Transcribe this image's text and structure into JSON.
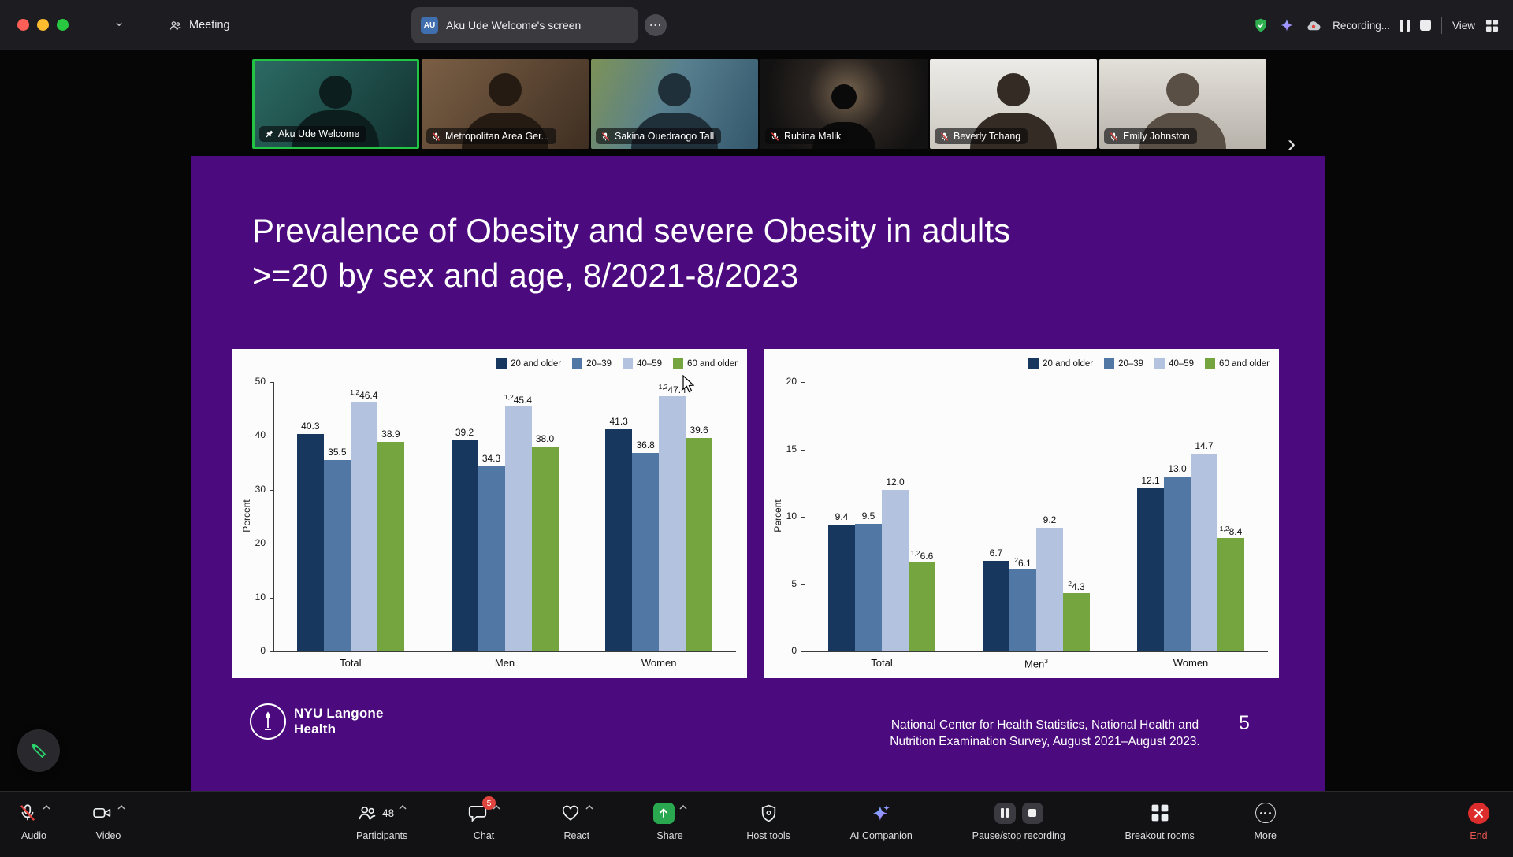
{
  "titlebar": {
    "meeting_tab_label": "Meeting",
    "active_tab_label": "Aku Ude Welcome's screen",
    "active_tab_badge": "AU",
    "recording_label": "Recording...",
    "view_label": "View"
  },
  "icons": {
    "chevron_down": "⌄",
    "ellipsis": "⋯",
    "chevron_right": "›"
  },
  "participants": [
    {
      "name": "Aku Ude Welcome",
      "pinned": true,
      "active_speaker": true
    },
    {
      "name": "Metropolitan Area Ger...",
      "muted": true
    },
    {
      "name": "Sakina Ouedraogo Tall",
      "muted": true
    },
    {
      "name": "Rubina Malik",
      "muted": true
    },
    {
      "name": "Beverly Tchang",
      "muted": true
    },
    {
      "name": "Emily Johnston",
      "muted": true
    }
  ],
  "slide": {
    "title_line1": "Prevalence of Obesity and severe Obesity in adults",
    "title_line2": ">=20 by sex and age, 8/2021-8/2023",
    "logo_line1": "NYU Langone",
    "logo_line2": "Health",
    "citation_line1": "National Center for Health Statistics, National Health and",
    "citation_line2": "Nutrition Examination Survey, August 2021–August 2023.",
    "page_number": "5",
    "background_color": "#4b0a7d"
  },
  "chart_data": [
    {
      "type": "bar",
      "ylabel": "Percent",
      "ylim": [
        0,
        50
      ],
      "yticks": [
        0,
        10,
        20,
        30,
        40,
        50
      ],
      "grid": false,
      "legend_position": "top-right",
      "categories": [
        {
          "label": "Total"
        },
        {
          "label": "Men"
        },
        {
          "label": "Women"
        }
      ],
      "series": [
        {
          "name": "20 and older",
          "color": "#17375e",
          "values": [
            {
              "v": 40.3,
              "label": "40.3"
            },
            {
              "v": 39.2,
              "label": "39.2"
            },
            {
              "v": 41.3,
              "label": "41.3"
            }
          ]
        },
        {
          "name": "20–39",
          "color": "#5177a4",
          "values": [
            {
              "v": 35.5,
              "label": "35.5"
            },
            {
              "v": 34.3,
              "label": "34.3"
            },
            {
              "v": 36.8,
              "label": "36.8"
            }
          ]
        },
        {
          "name": "40–59",
          "color": "#b3c2de",
          "values": [
            {
              "v": 46.4,
              "label": "46.4",
              "sup": "1,2"
            },
            {
              "v": 45.4,
              "label": "45.4",
              "sup": "1,2"
            },
            {
              "v": 47.4,
              "label": "47.4",
              "sup": "1,2"
            }
          ]
        },
        {
          "name": "60 and older",
          "color": "#74a53f",
          "values": [
            {
              "v": 38.9,
              "label": "38.9"
            },
            {
              "v": 38.0,
              "label": "38.0"
            },
            {
              "v": 39.6,
              "label": "39.6"
            }
          ]
        }
      ]
    },
    {
      "type": "bar",
      "ylabel": "Percent",
      "ylim": [
        0,
        20
      ],
      "yticks": [
        0,
        5,
        10,
        15,
        20
      ],
      "grid": false,
      "legend_position": "top-right",
      "categories": [
        {
          "label": "Total"
        },
        {
          "label": "Men",
          "sup": "3"
        },
        {
          "label": "Women"
        }
      ],
      "series": [
        {
          "name": "20 and older",
          "color": "#17375e",
          "values": [
            {
              "v": 9.4,
              "label": "9.4"
            },
            {
              "v": 6.7,
              "label": "6.7"
            },
            {
              "v": 12.1,
              "label": "12.1"
            }
          ]
        },
        {
          "name": "20–39",
          "color": "#5177a4",
          "values": [
            {
              "v": 9.5,
              "label": "9.5"
            },
            {
              "v": 6.1,
              "label": "6.1",
              "sup": "2"
            },
            {
              "v": 13.0,
              "label": "13.0"
            }
          ]
        },
        {
          "name": "40–59",
          "color": "#b3c2de",
          "values": [
            {
              "v": 12.0,
              "label": "12.0"
            },
            {
              "v": 9.2,
              "label": "9.2"
            },
            {
              "v": 14.7,
              "label": "14.7"
            }
          ]
        },
        {
          "name": "60 and older",
          "color": "#74a53f",
          "values": [
            {
              "v": 6.6,
              "label": "6.6",
              "sup": "1,2"
            },
            {
              "v": 4.3,
              "label": "4.3",
              "sup": "2"
            },
            {
              "v": 8.4,
              "label": "8.4",
              "sup": "1,2"
            }
          ]
        }
      ]
    }
  ],
  "toolbar": {
    "items": [
      {
        "label": "Audio"
      },
      {
        "label": "Video"
      },
      {
        "label": "Participants",
        "count": "48"
      },
      {
        "label": "Chat",
        "badge": "5"
      },
      {
        "label": "React"
      },
      {
        "label": "Share"
      },
      {
        "label": "Host tools"
      },
      {
        "label": "AI Companion"
      },
      {
        "label": "Pause/stop recording"
      },
      {
        "label": "Breakout rooms"
      },
      {
        "label": "More"
      },
      {
        "label": "End"
      }
    ]
  },
  "colors": {
    "slide_purple": "#4b0a7d",
    "active_speaker_green": "#23c343",
    "record_red": "#e0443e",
    "share_green": "#2aa84f",
    "end_red": "#dd2c2c"
  }
}
